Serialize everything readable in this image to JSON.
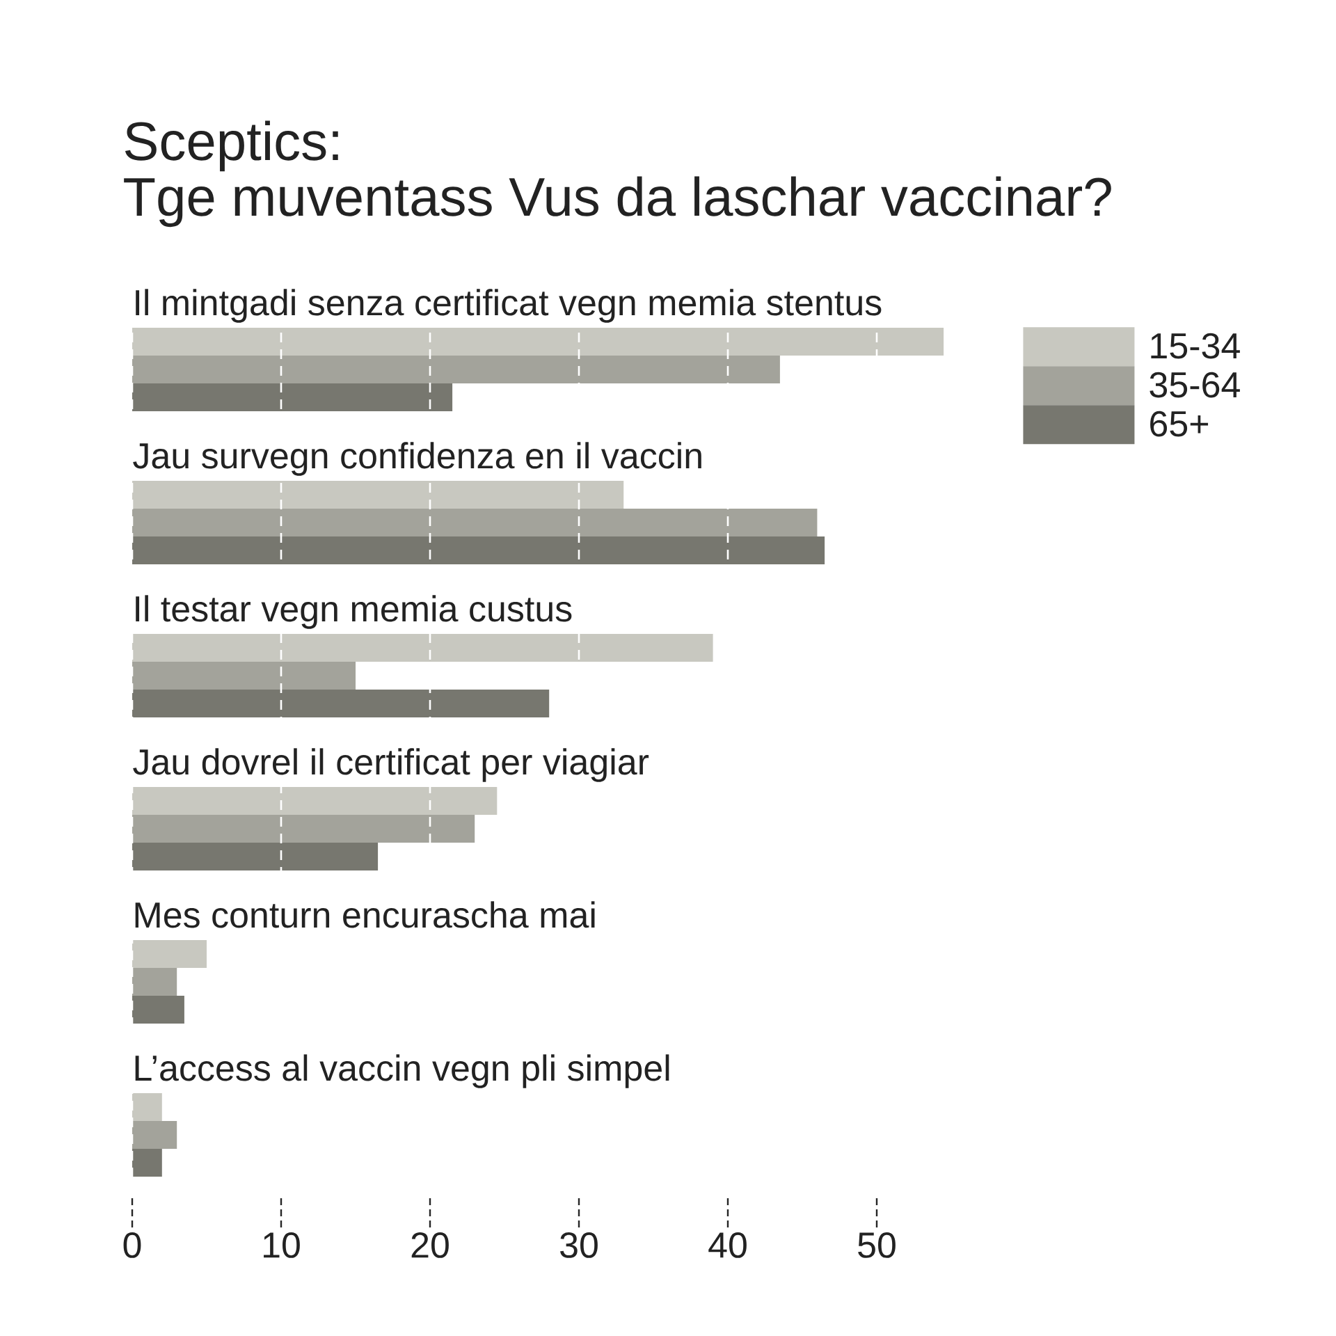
{
  "chart_data": {
    "type": "bar",
    "orientation": "horizontal",
    "title": "Sceptics:",
    "subtitle": "Tge muventass Vus da laschar vaccinar?",
    "categories": [
      "Il mintgadi senza certificat vegn memia stentus",
      "Jau survegn confidenza en il vaccin",
      "Il testar vegn memia custus",
      "Jau dovrel il certificat per viagiar",
      "Mes conturn encurascha mai",
      "L’access al vaccin vegn pli simpel"
    ],
    "series": [
      {
        "name": "15-34",
        "color": "#c8c8c0",
        "values": [
          54.5,
          33,
          39,
          24.5,
          5,
          2
        ]
      },
      {
        "name": "35-64",
        "color": "#a3a39b",
        "values": [
          43.5,
          46,
          15,
          23,
          3,
          3
        ]
      },
      {
        "name": "65+",
        "color": "#77776f",
        "values": [
          21.5,
          46.5,
          28,
          16.5,
          3.5,
          2
        ]
      }
    ],
    "xlim": [
      0,
      54.5
    ],
    "xticks": [
      0,
      10,
      20,
      30,
      40,
      50
    ],
    "grid": "x",
    "legend": "top right"
  }
}
